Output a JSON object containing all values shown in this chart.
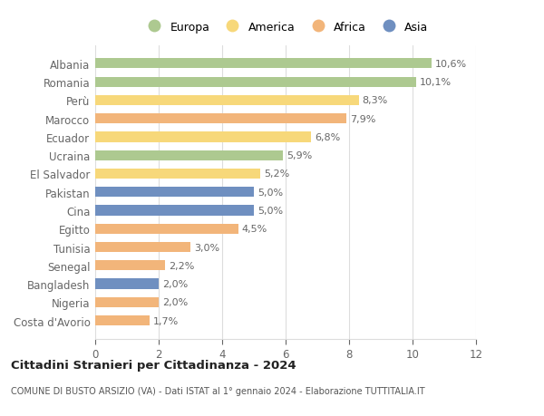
{
  "countries": [
    "Albania",
    "Romania",
    "Perù",
    "Marocco",
    "Ecuador",
    "Ucraina",
    "El Salvador",
    "Pakistan",
    "Cina",
    "Egitto",
    "Tunisia",
    "Senegal",
    "Bangladesh",
    "Nigeria",
    "Costa d'Avorio"
  ],
  "values": [
    10.6,
    10.1,
    8.3,
    7.9,
    6.8,
    5.9,
    5.2,
    5.0,
    5.0,
    4.5,
    3.0,
    2.2,
    2.0,
    2.0,
    1.7
  ],
  "labels": [
    "10,6%",
    "10,1%",
    "8,3%",
    "7,9%",
    "6,8%",
    "5,9%",
    "5,2%",
    "5,0%",
    "5,0%",
    "4,5%",
    "3,0%",
    "2,2%",
    "2,0%",
    "2,0%",
    "1,7%"
  ],
  "continents": [
    "Europa",
    "Europa",
    "America",
    "Africa",
    "America",
    "Europa",
    "America",
    "Asia",
    "Asia",
    "Africa",
    "Africa",
    "Africa",
    "Asia",
    "Africa",
    "Africa"
  ],
  "continent_colors": {
    "Europa": "#adc990",
    "America": "#f7d87a",
    "Africa": "#f2b57a",
    "Asia": "#6f8fc0"
  },
  "legend_order": [
    "Europa",
    "America",
    "Africa",
    "Asia"
  ],
  "xlim": [
    0,
    12
  ],
  "xticks": [
    0,
    2,
    4,
    6,
    8,
    10,
    12
  ],
  "title": "Cittadini Stranieri per Cittadinanza - 2024",
  "subtitle": "COMUNE DI BUSTO ARSIZIO (VA) - Dati ISTAT al 1° gennaio 2024 - Elaborazione TUTTITALIA.IT",
  "background_color": "#ffffff",
  "bar_height": 0.55,
  "grid_color": "#dddddd",
  "label_color": "#666666",
  "ytick_color": "#666666"
}
